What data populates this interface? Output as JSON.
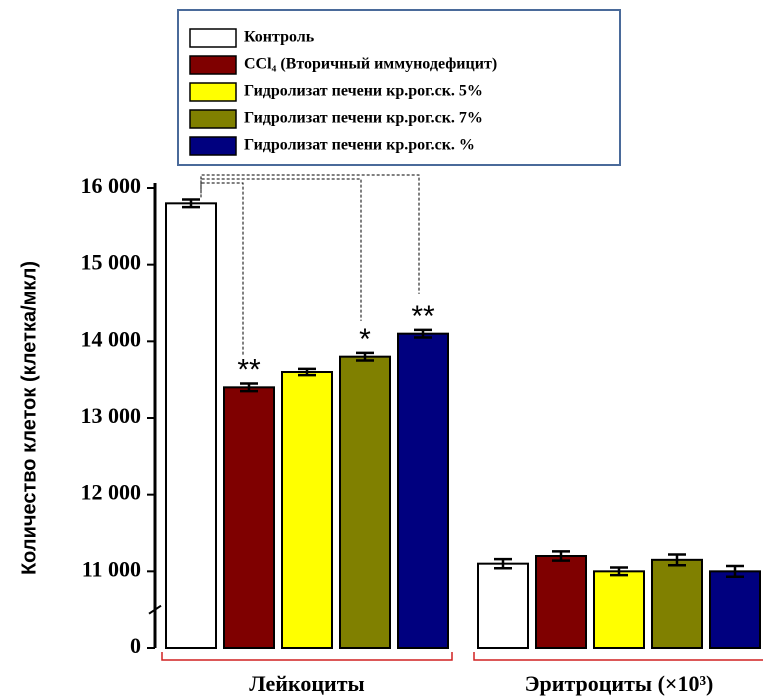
{
  "chart_data": {
    "type": "bar",
    "y_label": "Количество клеток (клетка/мкл)",
    "categories": [
      "Лейкоциты",
      "Эритроциты (×10³)"
    ],
    "series": [
      {
        "name": "Контроль",
        "color": "#ffffff",
        "values": [
          15800,
          11100
        ],
        "errors": [
          50,
          60
        ]
      },
      {
        "name": "CCl₄ (Вторичный иммунодефицит)",
        "color": "#7f0000",
        "values": [
          13400,
          11200
        ],
        "errors": [
          50,
          60
        ]
      },
      {
        "name": "Гидролизат печени кр.рог.ск.  5%",
        "color": "#ffff00",
        "values": [
          13600,
          11000
        ],
        "errors": [
          40,
          50
        ]
      },
      {
        "name": "Гидролизат печени кр.рог.ск.  7%",
        "color": "#808000",
        "values": [
          13800,
          11150
        ],
        "errors": [
          50,
          70
        ]
      },
      {
        "name": "Гидролизат печени кр.рог.ск. %",
        "color": "#00007f",
        "values": [
          14100,
          11000
        ],
        "errors": [
          50,
          70
        ]
      }
    ],
    "annotations": [
      {
        "text": "**",
        "series": 1,
        "category": 0
      },
      {
        "text": "*",
        "series": 3,
        "category": 0
      },
      {
        "text": "**",
        "series": 4,
        "category": 0
      }
    ],
    "ylim": [
      0,
      16000
    ],
    "axis_break": [
      0,
      10000
    ],
    "yticks": [
      0,
      {
        "value": 11000,
        "label": "11 000"
      },
      {
        "value": 12000,
        "label": "12 000"
      },
      {
        "value": 13000,
        "label": "13 000"
      },
      {
        "value": 14000,
        "label": "14 000"
      },
      {
        "value": 15000,
        "label": "15 000"
      },
      {
        "value": 16000,
        "label": "16 000"
      }
    ],
    "legend": "top"
  }
}
